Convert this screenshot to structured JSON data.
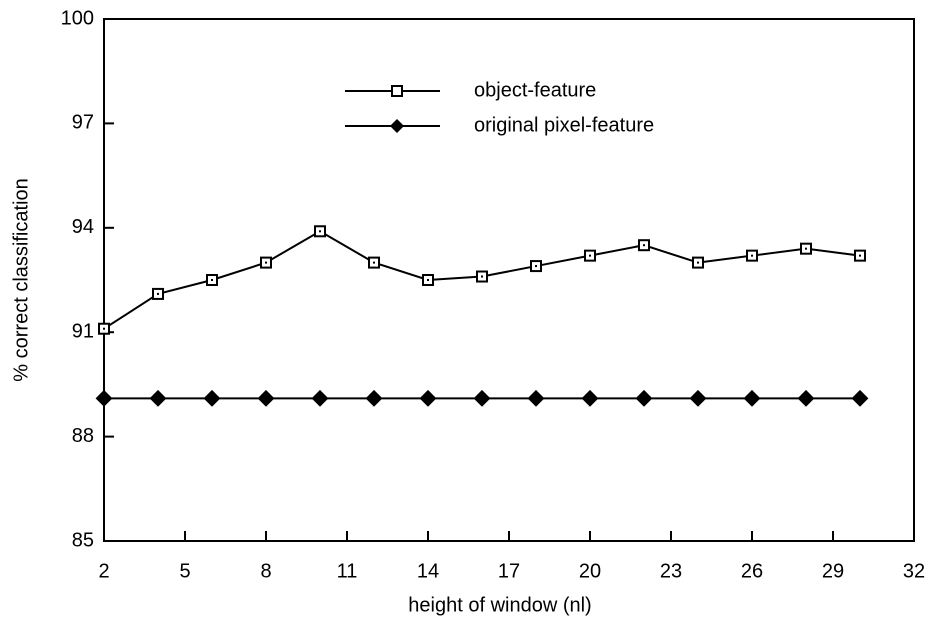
{
  "chart_data": {
    "type": "line",
    "xlabel": "height of window (nl)",
    "ylabel": "% correct classification",
    "x": [
      2,
      4,
      6,
      8,
      10,
      12,
      14,
      16,
      18,
      20,
      22,
      24,
      26,
      28,
      30
    ],
    "series": [
      {
        "name": "object-feature",
        "color": "#000000",
        "marker": "square",
        "values": [
          91.1,
          92.1,
          92.5,
          93.0,
          93.9,
          93.0,
          92.5,
          92.6,
          92.9,
          93.2,
          93.5,
          93.0,
          93.2,
          93.4,
          93.2
        ]
      },
      {
        "name": "original pixel-feature",
        "color": "#000000",
        "marker": "diamond",
        "values": [
          89.1,
          89.1,
          89.1,
          89.1,
          89.1,
          89.1,
          89.1,
          89.1,
          89.1,
          89.1,
          89.1,
          89.1,
          89.1,
          89.1,
          89.1
        ]
      }
    ],
    "xlim": [
      2,
      32
    ],
    "xticks": [
      2,
      5,
      8,
      11,
      14,
      17,
      20,
      23,
      26,
      29,
      32
    ],
    "ylim": [
      85,
      100
    ],
    "yticks": [
      85,
      88,
      91,
      94,
      97,
      100
    ],
    "grid": false,
    "legend": "top"
  }
}
